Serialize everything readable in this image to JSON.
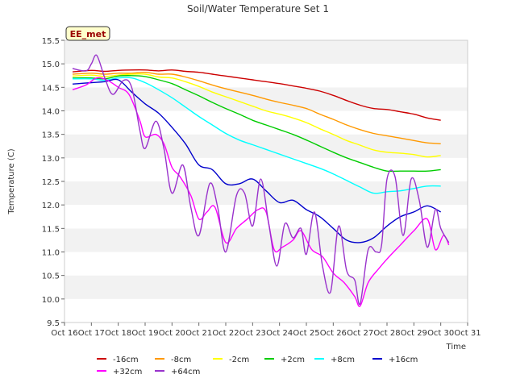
{
  "chart_data": {
    "type": "line",
    "title": "Soil/Water Temperature Set 1",
    "xlabel": "Time",
    "ylabel": "Temperature (C)",
    "annotation": "EE_met",
    "xlim": [
      16,
      31
    ],
    "ylim": [
      9.5,
      15.5
    ],
    "x_ticks": [
      16,
      17,
      18,
      19,
      20,
      21,
      22,
      23,
      24,
      25,
      26,
      27,
      28,
      29,
      30,
      31
    ],
    "x_tick_labels": [
      "Oct 16",
      "Oct 17",
      "Oct 18",
      "Oct 19",
      "Oct 20",
      "Oct 21",
      "Oct 22",
      "Oct 23",
      "Oct 24",
      "Oct 25",
      "Oct 26",
      "Oct 27",
      "Oct 28",
      "Oct 29",
      "Oct 30",
      "Oct 31"
    ],
    "y_ticks": [
      9.5,
      10.0,
      10.5,
      11.0,
      11.5,
      12.0,
      12.5,
      13.0,
      13.5,
      14.0,
      14.5,
      15.0,
      15.5
    ],
    "y_tick_labels": [
      "9.5",
      "10.0",
      "10.5",
      "11.0",
      "11.5",
      "12.0",
      "12.5",
      "13.0",
      "13.5",
      "14.0",
      "14.5",
      "15.0",
      "15.5"
    ],
    "grid": "horizontal bands",
    "legend_position": "bottom",
    "series": [
      {
        "name": "-16cm",
        "color": "#cc0000",
        "points": [
          [
            16.3,
            14.83
          ],
          [
            17.0,
            14.86
          ],
          [
            17.5,
            14.84
          ],
          [
            18.0,
            14.86
          ],
          [
            18.5,
            14.87
          ],
          [
            19.0,
            14.87
          ],
          [
            19.5,
            14.85
          ],
          [
            20.0,
            14.87
          ],
          [
            20.5,
            14.84
          ],
          [
            21.0,
            14.82
          ],
          [
            21.5,
            14.78
          ],
          [
            22.0,
            14.74
          ],
          [
            22.5,
            14.7
          ],
          [
            23.0,
            14.66
          ],
          [
            23.5,
            14.62
          ],
          [
            24.0,
            14.58
          ],
          [
            24.5,
            14.53
          ],
          [
            25.0,
            14.48
          ],
          [
            25.5,
            14.42
          ],
          [
            26.0,
            14.33
          ],
          [
            26.5,
            14.22
          ],
          [
            27.0,
            14.12
          ],
          [
            27.5,
            14.05
          ],
          [
            28.0,
            14.03
          ],
          [
            28.5,
            13.98
          ],
          [
            29.0,
            13.93
          ],
          [
            29.5,
            13.85
          ],
          [
            30.0,
            13.8
          ]
        ]
      },
      {
        "name": "-8cm",
        "color": "#ff9900",
        "points": [
          [
            16.3,
            14.78
          ],
          [
            17.0,
            14.8
          ],
          [
            17.5,
            14.78
          ],
          [
            18.0,
            14.8
          ],
          [
            18.5,
            14.8
          ],
          [
            19.0,
            14.82
          ],
          [
            19.5,
            14.78
          ],
          [
            20.0,
            14.78
          ],
          [
            20.5,
            14.72
          ],
          [
            21.0,
            14.64
          ],
          [
            21.5,
            14.55
          ],
          [
            22.0,
            14.47
          ],
          [
            22.5,
            14.4
          ],
          [
            23.0,
            14.33
          ],
          [
            23.5,
            14.25
          ],
          [
            24.0,
            14.18
          ],
          [
            24.5,
            14.12
          ],
          [
            25.0,
            14.05
          ],
          [
            25.5,
            13.93
          ],
          [
            26.0,
            13.82
          ],
          [
            26.5,
            13.7
          ],
          [
            27.0,
            13.6
          ],
          [
            27.5,
            13.52
          ],
          [
            28.0,
            13.47
          ],
          [
            28.5,
            13.42
          ],
          [
            29.0,
            13.37
          ],
          [
            29.5,
            13.32
          ],
          [
            30.0,
            13.3
          ]
        ]
      },
      {
        "name": "-2cm",
        "color": "#ffff00",
        "points": [
          [
            16.3,
            14.74
          ],
          [
            17.0,
            14.76
          ],
          [
            17.5,
            14.73
          ],
          [
            18.0,
            14.76
          ],
          [
            18.5,
            14.78
          ],
          [
            19.0,
            14.78
          ],
          [
            19.5,
            14.72
          ],
          [
            20.0,
            14.7
          ],
          [
            20.5,
            14.62
          ],
          [
            21.0,
            14.52
          ],
          [
            21.5,
            14.4
          ],
          [
            22.0,
            14.3
          ],
          [
            22.5,
            14.2
          ],
          [
            23.0,
            14.1
          ],
          [
            23.5,
            14.0
          ],
          [
            24.0,
            13.93
          ],
          [
            24.5,
            13.85
          ],
          [
            25.0,
            13.75
          ],
          [
            25.5,
            13.62
          ],
          [
            26.0,
            13.5
          ],
          [
            26.5,
            13.37
          ],
          [
            27.0,
            13.27
          ],
          [
            27.5,
            13.17
          ],
          [
            28.0,
            13.12
          ],
          [
            28.5,
            13.1
          ],
          [
            29.0,
            13.07
          ],
          [
            29.5,
            13.02
          ],
          [
            30.0,
            13.05
          ]
        ]
      },
      {
        "name": "+2cm",
        "color": "#00cc00",
        "points": [
          [
            16.3,
            14.7
          ],
          [
            17.0,
            14.7
          ],
          [
            17.5,
            14.68
          ],
          [
            18.0,
            14.74
          ],
          [
            18.5,
            14.75
          ],
          [
            19.0,
            14.73
          ],
          [
            19.5,
            14.66
          ],
          [
            20.0,
            14.58
          ],
          [
            20.5,
            14.45
          ],
          [
            21.0,
            14.32
          ],
          [
            21.5,
            14.18
          ],
          [
            22.0,
            14.05
          ],
          [
            22.5,
            13.93
          ],
          [
            23.0,
            13.8
          ],
          [
            23.5,
            13.7
          ],
          [
            24.0,
            13.6
          ],
          [
            24.5,
            13.5
          ],
          [
            25.0,
            13.38
          ],
          [
            25.5,
            13.25
          ],
          [
            26.0,
            13.12
          ],
          [
            26.5,
            13.0
          ],
          [
            27.0,
            12.9
          ],
          [
            27.5,
            12.8
          ],
          [
            28.0,
            12.72
          ],
          [
            28.5,
            12.72
          ],
          [
            29.0,
            12.72
          ],
          [
            29.5,
            12.72
          ],
          [
            30.0,
            12.75
          ]
        ]
      },
      {
        "name": "+8cm",
        "color": "#00ffff",
        "points": [
          [
            16.3,
            14.68
          ],
          [
            17.0,
            14.68
          ],
          [
            17.5,
            14.65
          ],
          [
            18.0,
            14.7
          ],
          [
            18.5,
            14.7
          ],
          [
            19.0,
            14.6
          ],
          [
            19.5,
            14.45
          ],
          [
            20.0,
            14.28
          ],
          [
            20.5,
            14.08
          ],
          [
            21.0,
            13.88
          ],
          [
            21.5,
            13.7
          ],
          [
            22.0,
            13.52
          ],
          [
            22.5,
            13.38
          ],
          [
            23.0,
            13.28
          ],
          [
            23.5,
            13.18
          ],
          [
            24.0,
            13.08
          ],
          [
            24.5,
            12.98
          ],
          [
            25.0,
            12.88
          ],
          [
            25.5,
            12.78
          ],
          [
            26.0,
            12.66
          ],
          [
            26.5,
            12.52
          ],
          [
            27.0,
            12.38
          ],
          [
            27.5,
            12.25
          ],
          [
            28.0,
            12.28
          ],
          [
            28.5,
            12.3
          ],
          [
            29.0,
            12.35
          ],
          [
            29.5,
            12.4
          ],
          [
            30.0,
            12.4
          ]
        ]
      },
      {
        "name": "+16cm",
        "color": "#0000cc",
        "points": [
          [
            16.3,
            14.57
          ],
          [
            17.0,
            14.6
          ],
          [
            17.5,
            14.62
          ],
          [
            18.0,
            14.66
          ],
          [
            18.5,
            14.4
          ],
          [
            19.0,
            14.15
          ],
          [
            19.5,
            13.95
          ],
          [
            20.0,
            13.65
          ],
          [
            20.5,
            13.3
          ],
          [
            21.0,
            12.85
          ],
          [
            21.5,
            12.75
          ],
          [
            22.0,
            12.45
          ],
          [
            22.5,
            12.45
          ],
          [
            23.0,
            12.55
          ],
          [
            23.5,
            12.3
          ],
          [
            24.0,
            12.05
          ],
          [
            24.5,
            12.1
          ],
          [
            25.0,
            11.9
          ],
          [
            25.5,
            11.75
          ],
          [
            26.0,
            11.5
          ],
          [
            26.5,
            11.25
          ],
          [
            27.0,
            11.2
          ],
          [
            27.5,
            11.3
          ],
          [
            28.0,
            11.55
          ],
          [
            28.5,
            11.75
          ],
          [
            29.0,
            11.85
          ],
          [
            29.5,
            11.98
          ],
          [
            30.0,
            11.85
          ]
        ]
      },
      {
        "name": "+32cm",
        "color": "#ff00ff",
        "points": [
          [
            16.3,
            14.45
          ],
          [
            16.8,
            14.55
          ],
          [
            17.2,
            14.7
          ],
          [
            17.6,
            14.65
          ],
          [
            18.0,
            14.5
          ],
          [
            18.4,
            14.35
          ],
          [
            18.8,
            13.8
          ],
          [
            19.0,
            13.45
          ],
          [
            19.4,
            13.5
          ],
          [
            19.7,
            13.3
          ],
          [
            20.0,
            12.8
          ],
          [
            20.3,
            12.6
          ],
          [
            20.7,
            12.2
          ],
          [
            21.0,
            11.7
          ],
          [
            21.3,
            11.85
          ],
          [
            21.6,
            11.95
          ],
          [
            22.0,
            11.2
          ],
          [
            22.4,
            11.5
          ],
          [
            22.8,
            11.7
          ],
          [
            23.2,
            11.9
          ],
          [
            23.5,
            11.85
          ],
          [
            23.8,
            11.05
          ],
          [
            24.1,
            11.1
          ],
          [
            24.5,
            11.25
          ],
          [
            24.8,
            11.45
          ],
          [
            25.2,
            11.05
          ],
          [
            25.6,
            10.9
          ],
          [
            26.0,
            10.55
          ],
          [
            26.4,
            10.35
          ],
          [
            26.8,
            10.05
          ],
          [
            27.0,
            9.85
          ],
          [
            27.3,
            10.35
          ],
          [
            27.7,
            10.65
          ],
          [
            28.0,
            10.85
          ],
          [
            28.5,
            11.15
          ],
          [
            29.0,
            11.45
          ],
          [
            29.5,
            11.7
          ],
          [
            29.8,
            11.05
          ],
          [
            30.1,
            11.35
          ],
          [
            30.3,
            11.15
          ]
        ]
      },
      {
        "name": "+64cm",
        "color": "#9933cc",
        "points": [
          [
            16.3,
            14.9
          ],
          [
            16.8,
            14.85
          ],
          [
            17.0,
            15.0
          ],
          [
            17.2,
            15.18
          ],
          [
            17.5,
            14.7
          ],
          [
            17.8,
            14.35
          ],
          [
            18.2,
            14.65
          ],
          [
            18.5,
            14.5
          ],
          [
            18.8,
            13.6
          ],
          [
            19.0,
            13.2
          ],
          [
            19.4,
            13.78
          ],
          [
            19.7,
            13.2
          ],
          [
            20.0,
            12.25
          ],
          [
            20.4,
            12.85
          ],
          [
            20.7,
            11.95
          ],
          [
            21.0,
            11.35
          ],
          [
            21.4,
            12.45
          ],
          [
            21.7,
            11.95
          ],
          [
            22.0,
            11.0
          ],
          [
            22.4,
            12.2
          ],
          [
            22.7,
            12.25
          ],
          [
            23.0,
            11.55
          ],
          [
            23.3,
            12.55
          ],
          [
            23.6,
            11.6
          ],
          [
            23.9,
            10.7
          ],
          [
            24.2,
            11.6
          ],
          [
            24.5,
            11.3
          ],
          [
            24.8,
            11.5
          ],
          [
            25.0,
            10.95
          ],
          [
            25.3,
            11.85
          ],
          [
            25.6,
            10.7
          ],
          [
            25.9,
            10.15
          ],
          [
            26.2,
            11.55
          ],
          [
            26.5,
            10.6
          ],
          [
            26.8,
            10.4
          ],
          [
            27.0,
            9.9
          ],
          [
            27.3,
            11.05
          ],
          [
            27.6,
            11.0
          ],
          [
            27.8,
            11.15
          ],
          [
            28.0,
            12.55
          ],
          [
            28.3,
            12.6
          ],
          [
            28.6,
            11.35
          ],
          [
            28.9,
            12.55
          ],
          [
            29.2,
            12.1
          ],
          [
            29.5,
            11.1
          ],
          [
            29.8,
            11.9
          ],
          [
            30.0,
            11.5
          ],
          [
            30.3,
            11.2
          ]
        ]
      }
    ]
  }
}
